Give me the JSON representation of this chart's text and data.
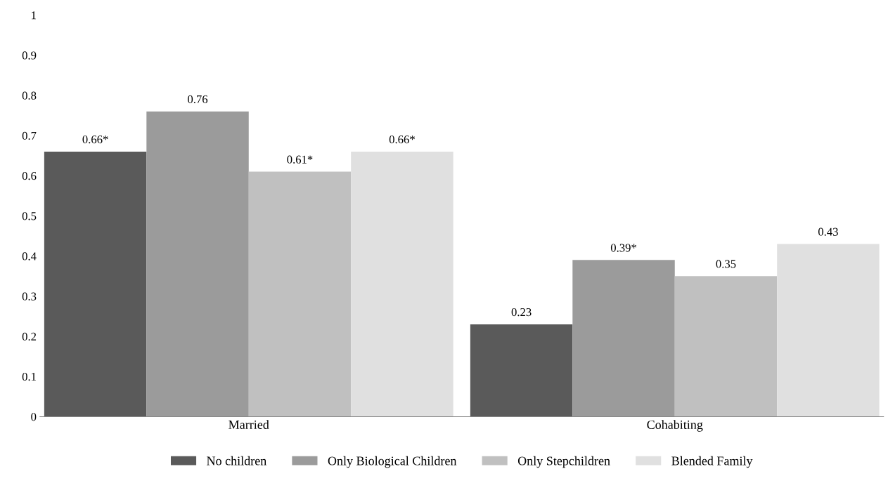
{
  "chart_data": {
    "type": "bar",
    "categories": [
      "Married",
      "Cohabiting"
    ],
    "series": [
      {
        "name": "No children",
        "color": "#5a5a5a",
        "values": [
          0.66,
          0.23
        ],
        "value_labels": [
          "0.66*",
          "0.23"
        ]
      },
      {
        "name": "Only Biological Children",
        "color": "#9b9b9b",
        "values": [
          0.76,
          0.39
        ],
        "value_labels": [
          "0.76",
          "0.39*"
        ]
      },
      {
        "name": "Only Stepchildren",
        "color": "#c0c0c0",
        "values": [
          0.61,
          0.35
        ],
        "value_labels": [
          "0.61*",
          "0.35"
        ]
      },
      {
        "name": "Blended Family",
        "color": "#e0e0e0",
        "values": [
          0.66,
          0.43
        ],
        "value_labels": [
          "0.66*",
          "0.43"
        ]
      }
    ],
    "ylim": [
      0,
      1
    ],
    "yticks": [
      0,
      0.1,
      0.2,
      0.3,
      0.4,
      0.5,
      0.6,
      0.7,
      0.8,
      0.9,
      1
    ],
    "grid": false,
    "legend": "bottom"
  }
}
